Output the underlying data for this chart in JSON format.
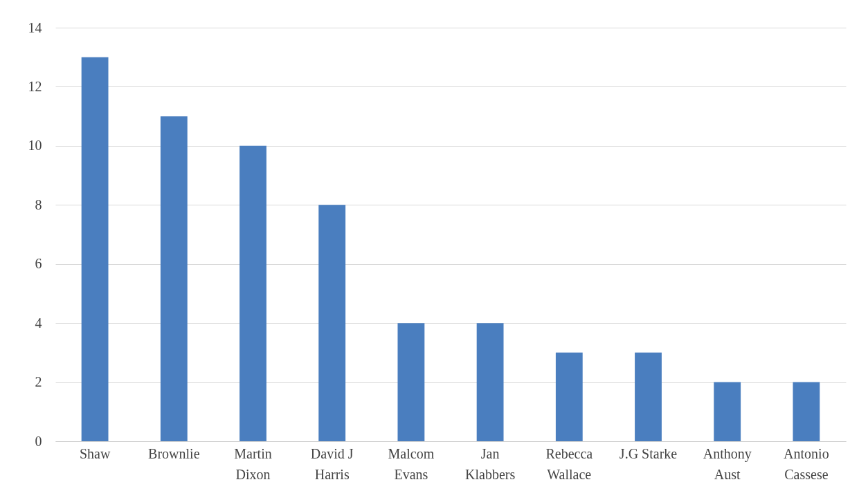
{
  "chart_data": {
    "type": "bar",
    "categories": [
      "Shaw",
      "Brownlie",
      "Martin Dixon",
      "David J Harris",
      "Malcom Evans",
      "Jan Klabbers",
      "Rebecca Wallace",
      "J.G Starke",
      "Anthony Aust",
      "Antonio Cassese"
    ],
    "values": [
      13,
      11,
      10,
      8,
      4,
      4,
      3,
      3,
      2,
      2
    ],
    "color": "#4a7ebf",
    "ylim": [
      0,
      14
    ],
    "yticks": [
      0,
      2,
      4,
      6,
      8,
      10,
      12,
      14
    ],
    "grid": "y"
  }
}
